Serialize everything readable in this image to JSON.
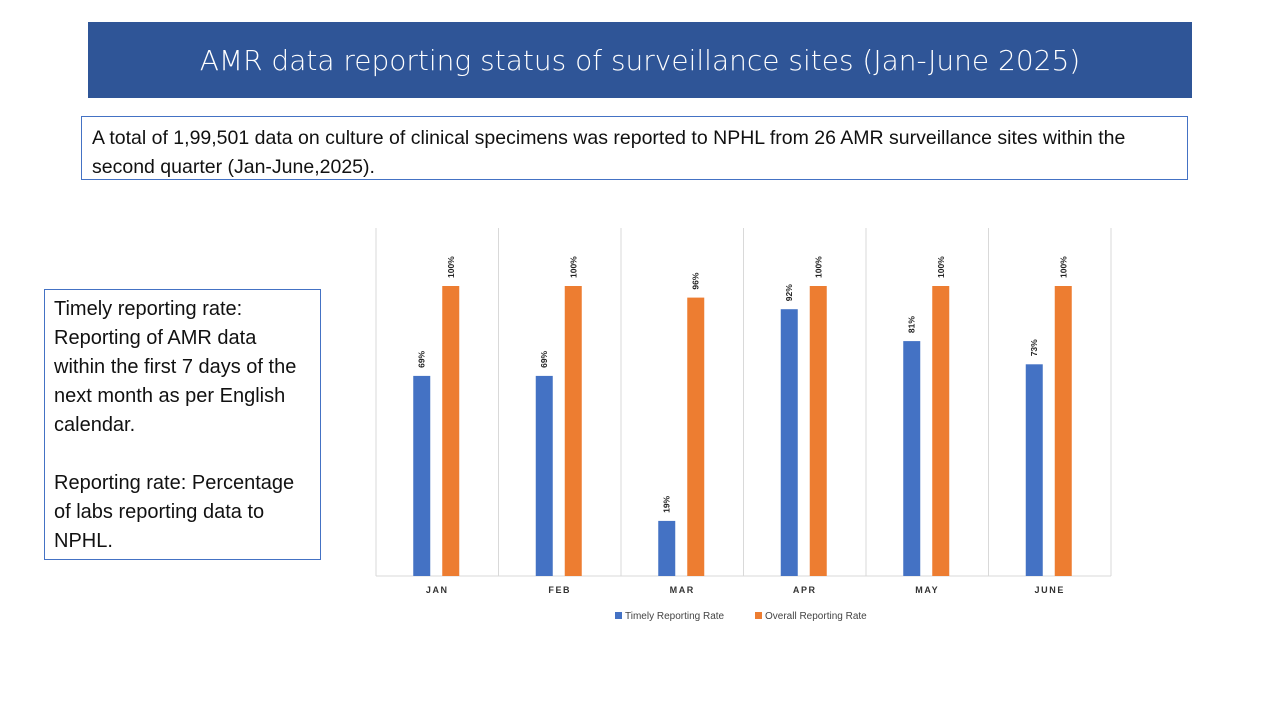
{
  "header": {
    "title": "AMR data reporting status of surveillance sites (Jan-June 2025)"
  },
  "summary": {
    "text": "A total of  1,99,501 data on culture of clinical specimens was reported to NPHL from 26 AMR surveillance sites within the second quarter (Jan-June,2025)."
  },
  "definitions": {
    "timely": "Timely reporting rate: Reporting of AMR data within the first 7 days of the next month as per English calendar.",
    "reporting": "Reporting rate: Percentage of labs reporting data to NPHL."
  },
  "colors": {
    "banner": "#2f5597",
    "timely": "#4472c4",
    "overall": "#ed7d31"
  },
  "chart_data": {
    "type": "bar",
    "title": "",
    "xlabel": "",
    "ylabel": "",
    "ylim": [
      0,
      120
    ],
    "grid": "vertical-category-separators",
    "legend": "bottom-center",
    "categories": [
      "JAN",
      "FEB",
      "MAR",
      "APR",
      "MAY",
      "JUNE"
    ],
    "series": [
      {
        "name": "Timely Reporting Rate",
        "values": [
          69,
          69,
          19,
          92,
          81,
          73
        ],
        "labels": [
          "69%",
          "69%",
          "19%",
          "92%",
          "81%",
          "73%"
        ]
      },
      {
        "name": "Overall Reporting Rate",
        "values": [
          100,
          100,
          96,
          100,
          100,
          100
        ],
        "labels": [
          "100%",
          "100%",
          "96%",
          "100%",
          "100%",
          "100%"
        ]
      }
    ]
  }
}
